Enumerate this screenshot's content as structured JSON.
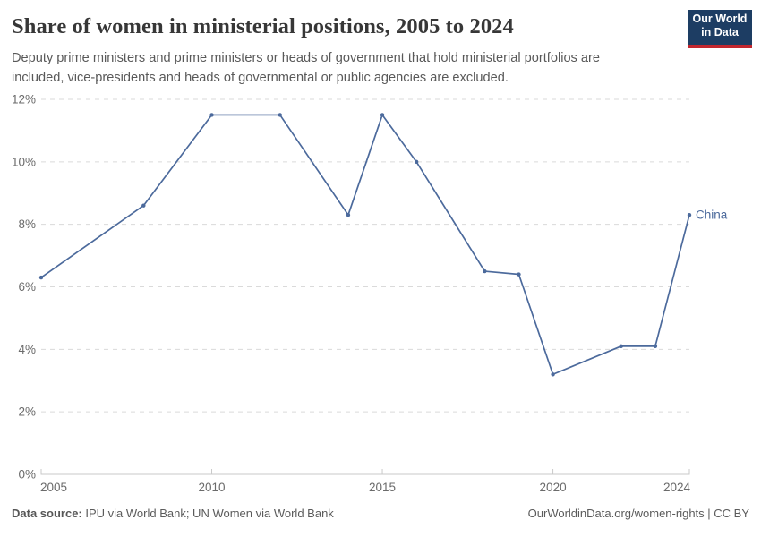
{
  "header": {
    "title": "Share of women in ministerial positions, 2005 to 2024",
    "subtitle": "Deputy prime ministers and prime ministers or heads of government that hold ministerial portfolios are included, vice-presidents and heads of governmental or public agencies are excluded.",
    "logo": {
      "line1": "Our World",
      "line2": "in Data",
      "bg_color": "#1d3d63",
      "stripe_color": "#c2262e"
    }
  },
  "chart_data": {
    "type": "line",
    "title": "Share of women in ministerial positions, 2005 to 2024",
    "x": [
      2005,
      2008,
      2010,
      2012,
      2014,
      2015,
      2016,
      2018,
      2019,
      2020,
      2022,
      2023,
      2024
    ],
    "series": [
      {
        "name": "China",
        "color": "#4c6a9c",
        "values": [
          6.3,
          8.6,
          11.5,
          11.5,
          8.3,
          11.5,
          10,
          6.5,
          6.4,
          3.2,
          4.1,
          4.1,
          8.3
        ]
      }
    ],
    "xlabel": "",
    "ylabel": "",
    "xlim": [
      2005,
      2024
    ],
    "ylim": [
      0,
      12
    ],
    "x_ticks": [
      2005,
      2010,
      2015,
      2020,
      2024
    ],
    "y_ticks": [
      0,
      2,
      4,
      6,
      8,
      10,
      12
    ],
    "y_tick_suffix": "%",
    "grid": true,
    "legend": "line-end-label",
    "colors": {
      "grid_line": "#dadada",
      "axis_line": "#c9c9c9",
      "tick_label": "#6b6b6b"
    }
  },
  "footer": {
    "source_label": "Data source:",
    "source_text": " IPU via World Bank; UN Women via World Bank",
    "rights": "OurWorldinData.org/women-rights | CC BY"
  }
}
